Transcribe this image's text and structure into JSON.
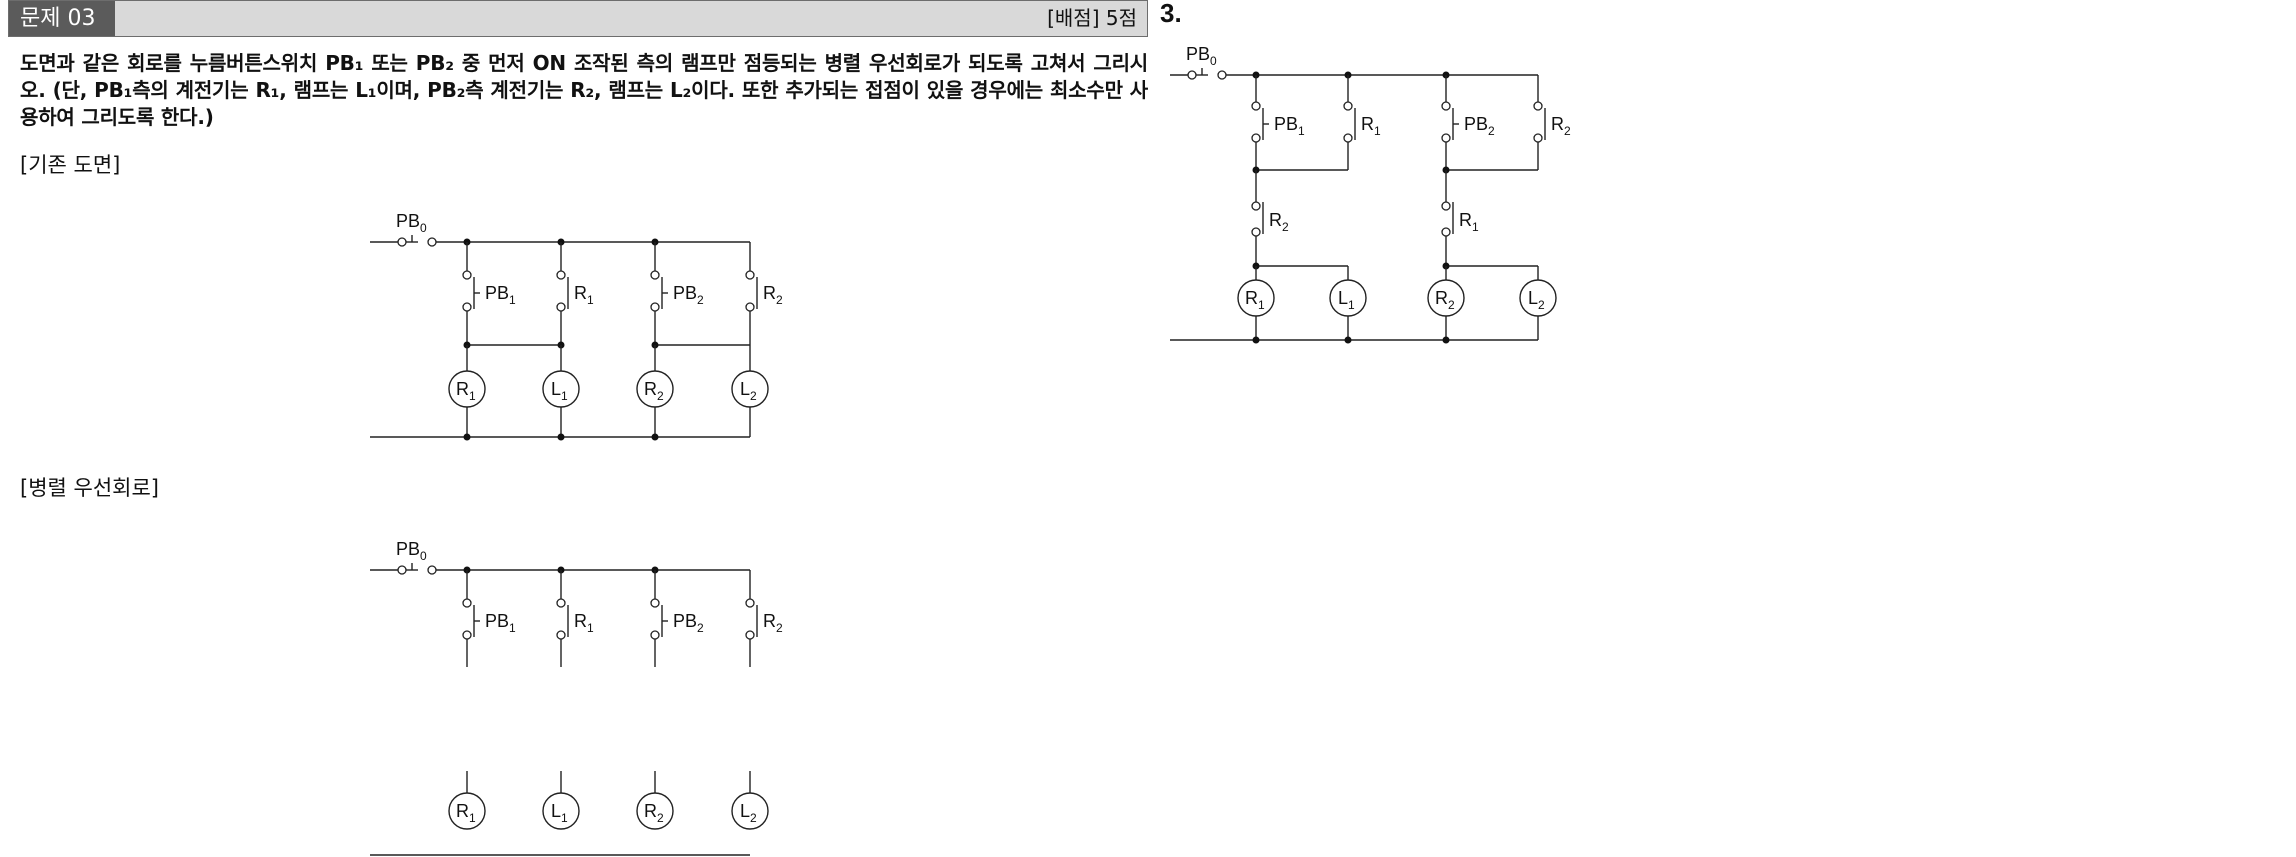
{
  "header": {
    "label": "문제 03",
    "score": "[배점] 5점"
  },
  "problem": {
    "text": "도면과 같은 회로를 누름버튼스위치 PB₁ 또는 PB₂ 중 먼저 ON 조작된 측의 램프만 점등되는 병렬 우선회로가 되도록 고쳐서 그리시오. (단, PB₁측의 계전기는 R₁, 램프는 L₁이며, PB₂측 계전기는 R₂, 램프는 L₂이다. 또한 추가되는 접점이 있을 경우에는 최소수만 사용하여 그리도록 한다.)"
  },
  "sections": {
    "existing": "[기존 도면]",
    "priority": "[병렬 우선회로]"
  },
  "answer": {
    "number": "3."
  },
  "labels": {
    "pb0": "PB",
    "pb0_sub": "0",
    "pb1": "PB",
    "pb1_sub": "1",
    "pb2": "PB",
    "pb2_sub": "2",
    "r": "R",
    "l": "L",
    "sub1": "1",
    "sub2": "2"
  }
}
